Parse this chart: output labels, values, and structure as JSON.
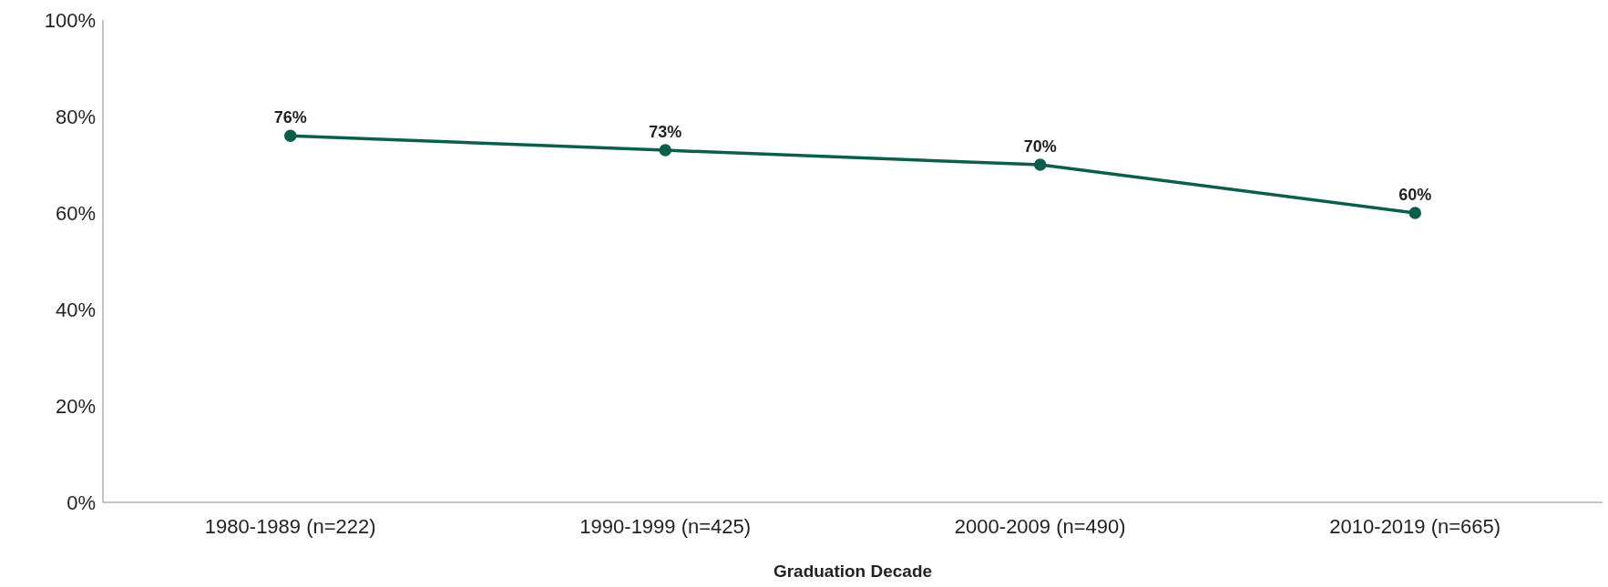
{
  "chart_data": {
    "type": "line",
    "xlabel": "Graduation  Decade",
    "categories": [
      "1980-1989 (n=222)",
      "1990-1999 (n=425)",
      "2000-2009 (n=490)",
      "2010-2019 (n=665)"
    ],
    "series": [
      {
        "color": "#0b5e4c",
        "values": [
          76,
          73,
          70,
          60
        ],
        "value_labels": [
          "76%",
          "73%",
          "70%",
          "60%"
        ]
      }
    ],
    "ylim": [
      0,
      100
    ],
    "yticks": [
      {
        "value": 0,
        "label": "0%"
      },
      {
        "value": 20,
        "label": "20%"
      },
      {
        "value": 40,
        "label": "40%"
      },
      {
        "value": 60,
        "label": "60%"
      },
      {
        "value": 80,
        "label": "80%"
      },
      {
        "value": 100,
        "label": "100%"
      }
    ],
    "grid": false,
    "legend": false,
    "marker": "circle",
    "line_style": "solid"
  }
}
